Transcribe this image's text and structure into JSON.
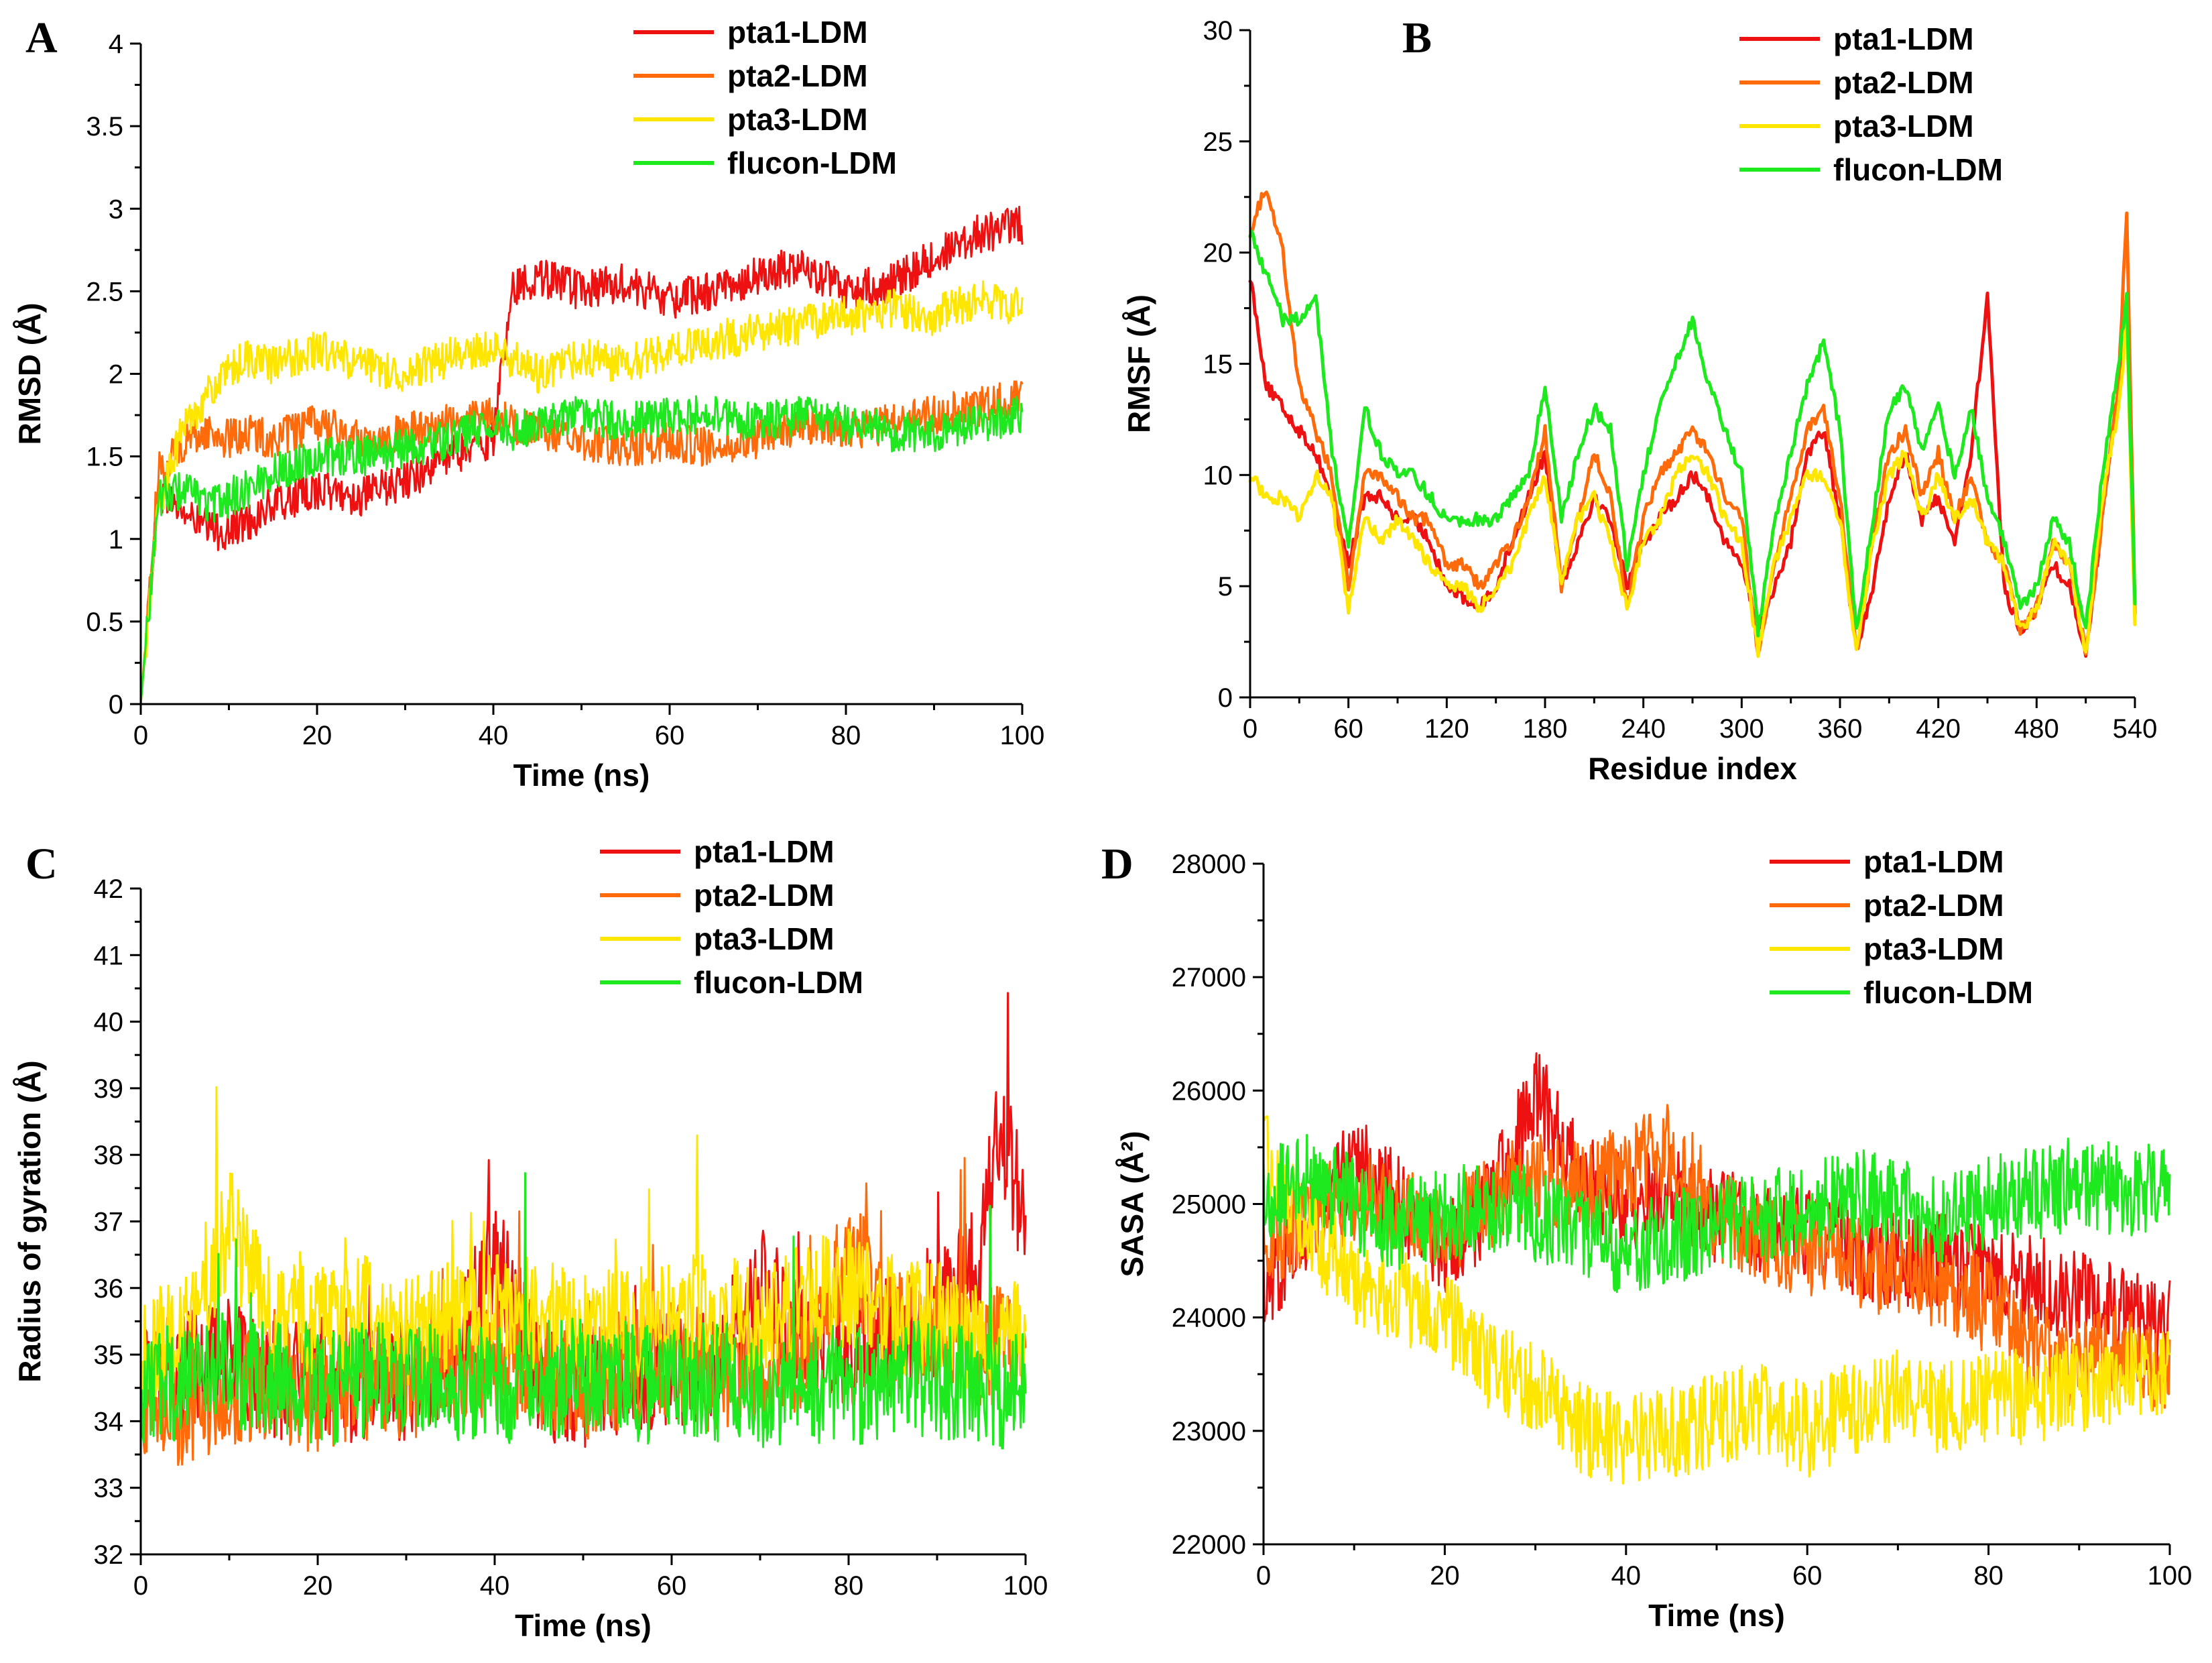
{
  "colors": {
    "pta1-LDM": "#ee1111",
    "pta2-LDM": "#ff6a0a",
    "pta3-LDM": "#ffe600",
    "flucon-LDM": "#1ee81e"
  },
  "chart_data": [
    {
      "type": "line",
      "panel": "A",
      "title": "",
      "xlabel": "Time (ns)",
      "ylabel": "RMSD (Å)",
      "xlim": [
        0,
        100
      ],
      "ylim": [
        0,
        4
      ],
      "xticks": [
        0,
        20,
        40,
        60,
        80,
        100
      ],
      "yticks": [
        0,
        0.5,
        1,
        1.5,
        2,
        2.5,
        3,
        3.5,
        4
      ],
      "legend_position": "top-right",
      "grid": false,
      "x": [
        0,
        2,
        5,
        8,
        10,
        12,
        15,
        20,
        25,
        30,
        35,
        40,
        42,
        45,
        50,
        55,
        60,
        65,
        70,
        75,
        80,
        85,
        90,
        95,
        100
      ],
      "series": [
        {
          "name": "pta1-LDM",
          "values": [
            0.0,
            1.3,
            1.15,
            1.05,
            1.05,
            1.1,
            1.2,
            1.3,
            1.25,
            1.35,
            1.5,
            1.6,
            2.5,
            2.6,
            2.5,
            2.55,
            2.45,
            2.5,
            2.6,
            2.65,
            2.5,
            2.55,
            2.7,
            2.85,
            2.9
          ]
        },
        {
          "name": "pta2-LDM",
          "values": [
            0.0,
            1.4,
            1.6,
            1.65,
            1.6,
            1.65,
            1.6,
            1.7,
            1.6,
            1.65,
            1.7,
            1.75,
            1.7,
            1.65,
            1.6,
            1.55,
            1.6,
            1.55,
            1.6,
            1.7,
            1.65,
            1.7,
            1.75,
            1.8,
            1.85
          ]
        },
        {
          "name": "pta3-LDM",
          "values": [
            0.0,
            1.2,
            1.7,
            1.9,
            2.0,
            2.1,
            2.05,
            2.15,
            2.05,
            2.0,
            2.1,
            2.15,
            2.1,
            2.0,
            2.1,
            2.05,
            2.15,
            2.2,
            2.25,
            2.3,
            2.35,
            2.4,
            2.35,
            2.45,
            2.4
          ]
        },
        {
          "name": "flucon-LDM",
          "values": [
            0.0,
            1.25,
            1.3,
            1.2,
            1.25,
            1.3,
            1.4,
            1.5,
            1.5,
            1.55,
            1.6,
            1.7,
            1.65,
            1.7,
            1.75,
            1.7,
            1.75,
            1.75,
            1.7,
            1.75,
            1.7,
            1.65,
            1.65,
            1.7,
            1.75
          ]
        }
      ]
    },
    {
      "type": "line",
      "panel": "B",
      "title": "",
      "xlabel": "Residue index",
      "ylabel": "RMSF (Å)",
      "xlim": [
        0,
        540
      ],
      "ylim": [
        0,
        30
      ],
      "xticks": [
        0,
        60,
        120,
        180,
        240,
        300,
        360,
        420,
        480,
        540
      ],
      "yticks": [
        0,
        5,
        10,
        15,
        20,
        25,
        30
      ],
      "legend_position": "top-right",
      "grid": false,
      "x": [
        0,
        10,
        20,
        30,
        40,
        50,
        60,
        70,
        80,
        90,
        100,
        110,
        120,
        130,
        140,
        150,
        160,
        170,
        180,
        190,
        200,
        210,
        220,
        230,
        240,
        250,
        260,
        270,
        280,
        290,
        300,
        310,
        320,
        330,
        340,
        350,
        360,
        370,
        380,
        390,
        400,
        410,
        420,
        430,
        440,
        450,
        460,
        470,
        480,
        490,
        500,
        510,
        520,
        530,
        535,
        540
      ],
      "series": [
        {
          "name": "pta1-LDM",
          "values": [
            19,
            14,
            13,
            12,
            11,
            9,
            6,
            9,
            9,
            8,
            8,
            7,
            5,
            4.5,
            4,
            5,
            7,
            9,
            11,
            5,
            7,
            9,
            8,
            5,
            7,
            8,
            9,
            10,
            9,
            7,
            6,
            3,
            5,
            7,
            11,
            12,
            8,
            2,
            5,
            9,
            11,
            8,
            9,
            7,
            11,
            18,
            5,
            3,
            4,
            6,
            5,
            2,
            8,
            14,
            18,
            4
          ]
        },
        {
          "name": "pta2-LDM",
          "values": [
            21,
            23,
            20,
            14,
            12,
            10,
            5,
            10,
            10,
            9,
            8,
            8,
            6,
            6,
            5,
            6,
            7,
            9,
            12,
            5,
            8,
            11,
            9,
            4,
            8,
            10,
            11,
            12,
            11,
            9,
            8,
            2,
            6,
            9,
            12,
            13,
            9,
            2,
            7,
            11,
            12,
            9,
            11,
            8,
            10,
            7,
            6,
            3,
            4,
            7,
            6,
            2,
            8,
            14,
            22,
            4
          ]
        },
        {
          "name": "pta3-LDM",
          "values": [
            10,
            9,
            9,
            8,
            10,
            9,
            4,
            8,
            7,
            8,
            7,
            6,
            5,
            5,
            4,
            5,
            6,
            8,
            10,
            5,
            8,
            9,
            7,
            4,
            7,
            8,
            10,
            11,
            10,
            8,
            7,
            2,
            6,
            8,
            10,
            10,
            8,
            2,
            7,
            10,
            11,
            8,
            10,
            8,
            9,
            7,
            6,
            3,
            4,
            7,
            6,
            2,
            9,
            13,
            17,
            3
          ]
        },
        {
          "name": "flucon-LDM",
          "values": [
            21,
            19,
            17,
            17,
            18,
            11,
            7,
            13,
            11,
            10,
            10,
            9,
            8,
            8,
            8,
            8,
            9,
            10,
            14,
            8,
            11,
            13,
            12,
            6,
            10,
            13,
            15,
            17,
            14,
            12,
            10,
            3,
            8,
            11,
            14,
            16,
            12,
            3,
            8,
            13,
            14,
            11,
            13,
            10,
            13,
            9,
            7,
            4,
            5,
            8,
            7,
            3,
            10,
            15,
            18,
            4
          ]
        }
      ]
    },
    {
      "type": "line",
      "panel": "C",
      "title": "",
      "xlabel": "Time (ns)",
      "ylabel": "Radius of gyration (Å)",
      "xlim": [
        0,
        100
      ],
      "ylim": [
        32,
        42
      ],
      "xticks": [
        0,
        20,
        40,
        60,
        80,
        100
      ],
      "yticks": [
        32,
        33,
        34,
        35,
        36,
        37,
        38,
        39,
        40,
        41,
        42
      ],
      "legend_position": "top-right",
      "grid": false,
      "x": [
        0,
        5,
        10,
        15,
        20,
        25,
        30,
        35,
        40,
        45,
        50,
        55,
        60,
        65,
        70,
        75,
        80,
        85,
        90,
        95,
        97,
        100
      ],
      "series": [
        {
          "name": "pta1-LDM",
          "values": [
            34.5,
            34.8,
            35.0,
            34.6,
            34.7,
            34.5,
            34.6,
            34.8,
            36.5,
            34.6,
            34.5,
            34.7,
            34.8,
            34.9,
            36.0,
            35.2,
            35.0,
            35.3,
            35.6,
            36.5,
            38.5,
            37.0
          ]
        },
        {
          "name": "pta2-LDM",
          "values": [
            34.3,
            34.2,
            34.5,
            34.6,
            34.4,
            34.5,
            34.6,
            34.7,
            34.8,
            34.7,
            34.6,
            34.8,
            34.9,
            34.7,
            34.8,
            35.0,
            36.5,
            35.5,
            35.3,
            35.0,
            35.2,
            34.8
          ]
        },
        {
          "name": "pta3-LDM",
          "values": [
            35.0,
            35.3,
            37.0,
            35.4,
            35.5,
            35.6,
            35.4,
            35.5,
            35.8,
            35.6,
            35.4,
            35.5,
            35.6,
            35.7,
            35.5,
            35.8,
            36.0,
            35.6,
            35.5,
            35.3,
            35.4,
            35.2
          ]
        },
        {
          "name": "flucon-LDM",
          "values": [
            34.5,
            34.6,
            34.8,
            34.6,
            34.5,
            34.6,
            34.7,
            34.6,
            34.5,
            34.6,
            34.7,
            34.6,
            34.5,
            34.6,
            34.5,
            34.6,
            34.5,
            34.7,
            34.6,
            34.5,
            34.4,
            34.5
          ]
        }
      ]
    },
    {
      "type": "line",
      "panel": "D",
      "title": "",
      "xlabel": "Time (ns)",
      "ylabel": "SASA (Å²)",
      "xlim": [
        0,
        100
      ],
      "ylim": [
        22000,
        28000
      ],
      "xticks": [
        0,
        20,
        40,
        60,
        80,
        100
      ],
      "yticks": [
        22000,
        23000,
        24000,
        25000,
        26000,
        27000,
        28000
      ],
      "legend_position": "top-right",
      "grid": false,
      "x": [
        0,
        5,
        10,
        15,
        20,
        25,
        30,
        35,
        40,
        45,
        50,
        55,
        60,
        65,
        70,
        75,
        80,
        85,
        90,
        95,
        100
      ],
      "series": [
        {
          "name": "pta1-LDM",
          "values": [
            24300,
            24800,
            25400,
            25000,
            24600,
            25000,
            26000,
            25200,
            25000,
            25100,
            24900,
            24800,
            24700,
            24600,
            24500,
            24500,
            24400,
            24300,
            24200,
            24000,
            23900
          ]
        },
        {
          "name": "pta2-LDM",
          "values": [
            24600,
            24900,
            25100,
            24900,
            24800,
            25000,
            25300,
            25100,
            25300,
            25500,
            24900,
            24700,
            24600,
            24500,
            24400,
            24300,
            24100,
            23700,
            23600,
            23700,
            23500
          ]
        },
        {
          "name": "pta3-LDM",
          "values": [
            25500,
            24800,
            24300,
            24200,
            24000,
            23600,
            23400,
            23000,
            22900,
            23000,
            23100,
            23200,
            23000,
            23200,
            23300,
            23200,
            23300,
            23300,
            23400,
            23500,
            23500
          ]
        },
        {
          "name": "flucon-LDM",
          "values": [
            25100,
            25200,
            25000,
            24800,
            24900,
            25000,
            24900,
            24800,
            24600,
            24700,
            24800,
            24900,
            25000,
            25100,
            25000,
            24900,
            25000,
            25100,
            25200,
            25100,
            25200
          ]
        }
      ]
    }
  ]
}
